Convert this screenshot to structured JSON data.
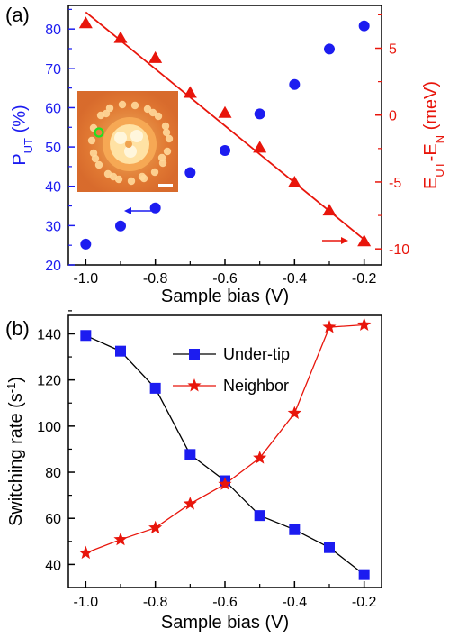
{
  "panel_a_label": "(a)",
  "panel_b_label": "(b)",
  "colors": {
    "blue": "#1c1cf0",
    "red": "#e8150b",
    "black": "#000000"
  },
  "inset": {
    "description_icon": "stm-image-inset"
  },
  "chart_data": [
    {
      "panel": "(a)",
      "type": "scatter",
      "xlabel": "Sample bias (V)",
      "xlim": [
        -1.05,
        -0.15
      ],
      "x_ticks": [
        "-1.0",
        "-0.8",
        "-0.6",
        "-0.4",
        "-0.2"
      ],
      "y_left": {
        "label_main": "P",
        "label_sub": "UT",
        "label_rest": " (%)",
        "ylim": [
          20,
          86
        ],
        "ticks": [
          "20",
          "30",
          "40",
          "50",
          "60",
          "70",
          "80"
        ],
        "color": "#1c1cf0"
      },
      "y_right": {
        "label_parts": [
          [
            "E",
            ""
          ],
          [
            "UT",
            "sub"
          ],
          [
            "-E",
            ""
          ],
          [
            "N",
            "sub"
          ],
          [
            " (meV)",
            ""
          ]
        ],
        "ylim": [
          -11.2,
          8.2
        ],
        "ticks": [
          "-10",
          "-5",
          "0",
          "5"
        ],
        "color": "#e8150b"
      },
      "series": [
        {
          "axis": "left",
          "marker": "circle",
          "x": [
            -1.0,
            -0.9,
            -0.8,
            -0.7,
            -0.6,
            -0.5,
            -0.4,
            -0.3,
            -0.2
          ],
          "y": [
            25.3,
            29.9,
            34.5,
            43.5,
            49.1,
            58.4,
            65.9,
            74.9,
            80.8
          ]
        },
        {
          "axis": "right",
          "marker": "triangle",
          "x": [
            -1.0,
            -0.9,
            -0.8,
            -0.7,
            -0.6,
            -0.5,
            -0.4,
            -0.3,
            -0.2
          ],
          "y": [
            6.9,
            5.8,
            4.3,
            1.7,
            0.2,
            -2.4,
            -5.0,
            -7.1,
            -9.4
          ]
        },
        {
          "axis": "right",
          "type": "fit-line",
          "x": [
            -1.0,
            -0.2
          ],
          "y": [
            7.7,
            -9.3
          ]
        }
      ],
      "arrows": [
        {
          "direction": "left",
          "color": "blue"
        },
        {
          "direction": "right",
          "color": "red"
        }
      ]
    },
    {
      "panel": "(b)",
      "type": "line",
      "xlabel": "Sample bias (V)",
      "xlim": [
        -1.05,
        -0.15
      ],
      "x_ticks": [
        "-1.0",
        "-0.8",
        "-0.6",
        "-0.4",
        "-0.2"
      ],
      "ylabel_main": "Switching rate (s",
      "ylabel_sup": "-1",
      "ylabel_end": ")",
      "ylim": [
        30,
        148
      ],
      "y_ticks": [
        "40",
        "60",
        "80",
        "100",
        "120",
        "140"
      ],
      "legend_placement": "top-center",
      "x": [
        -1.0,
        -0.9,
        -0.8,
        -0.7,
        -0.6,
        -0.5,
        -0.4,
        -0.3,
        -0.2
      ],
      "series": [
        {
          "name": "Under-tip",
          "marker": "square",
          "color": "#1c1cf0",
          "line_color": "#000000",
          "values": [
            139.3,
            132.5,
            116.4,
            87.7,
            76.3,
            61.2,
            55.1,
            47.3,
            35.6
          ]
        },
        {
          "name": "Neighbor",
          "marker": "star",
          "color": "#e8150b",
          "line_color": "#e8150b",
          "values": [
            45.0,
            50.8,
            55.9,
            66.3,
            74.8,
            86.2,
            105.6,
            142.9,
            143.9
          ]
        }
      ]
    }
  ]
}
